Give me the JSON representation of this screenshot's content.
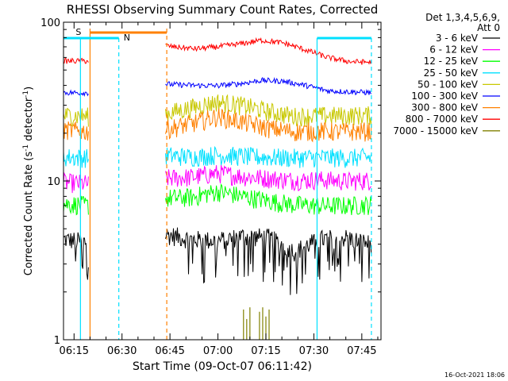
{
  "chart_data": {
    "type": "line",
    "title": "RHESSI Observing Summary Count Rates, Corrected",
    "xlabel": "Start Time (09-Oct-07 06:11:42)",
    "ylabel_main": "Corrected Count Rate (s",
    "ylabel_sup1": "-1",
    "ylabel_mid": " detector",
    "ylabel_sup2": "-1",
    "ylabel_end": ")",
    "y_scale": "log",
    "ylim": [
      1,
      100
    ],
    "xlim": [
      "06:11:42",
      "07:51:00"
    ],
    "x_ticks": [
      "06:15",
      "06:30",
      "06:45",
      "07:00",
      "07:15",
      "07:30",
      "07:45"
    ],
    "y_ticks": [
      "1",
      "10",
      "100"
    ],
    "legend_header": [
      "Det 1,3,4,5,6,9,",
      "Att 0"
    ],
    "legend_position": "top-right",
    "timestamp": "16-Oct-2021 18:06",
    "annotations": [
      {
        "label": "S",
        "color": "#ff8000"
      },
      {
        "label": "N",
        "color": "#00e0ff"
      }
    ],
    "data_gaps": [
      [
        "06:20",
        "06:43"
      ]
    ],
    "series": [
      {
        "name": "3 - 6 keV",
        "color": "#000000",
        "style": "noisy",
        "flicker": true,
        "base": [
          [
            0,
            4.3
          ],
          [
            1,
            4.1
          ],
          [
            2,
            4.7
          ],
          [
            3,
            4.5
          ],
          [
            4,
            4.6
          ],
          [
            5,
            4.3
          ],
          [
            6,
            4.2
          ],
          [
            7,
            4.5
          ],
          [
            8,
            4.4
          ],
          [
            9,
            3.6
          ],
          [
            10,
            4.3
          ],
          [
            11,
            4.4
          ],
          [
            12,
            4.0
          ]
        ]
      },
      {
        "name": "6 - 12 keV",
        "color": "#ff00ff",
        "style": "noisy",
        "base": [
          [
            0,
            9.8
          ],
          [
            1,
            9.6
          ],
          [
            2,
            10.3
          ],
          [
            3,
            10.1
          ],
          [
            4,
            10.4
          ],
          [
            5,
            10.6
          ],
          [
            6,
            11.2
          ],
          [
            7,
            10.7
          ],
          [
            8,
            10.4
          ],
          [
            9,
            10.1
          ],
          [
            10,
            10.2
          ],
          [
            11,
            10.0
          ],
          [
            12,
            10.1
          ]
        ]
      },
      {
        "name": "12 - 25 keV",
        "color": "#00ff00",
        "style": "noisy",
        "base": [
          [
            0,
            7.2
          ],
          [
            1,
            7.0
          ],
          [
            2,
            7.6
          ],
          [
            3,
            7.4
          ],
          [
            4,
            7.8
          ],
          [
            5,
            7.9
          ],
          [
            6,
            8.6
          ],
          [
            7,
            8.0
          ],
          [
            8,
            7.5
          ],
          [
            9,
            7.1
          ],
          [
            10,
            7.0
          ],
          [
            11,
            7.0
          ],
          [
            12,
            7.1
          ]
        ]
      },
      {
        "name": "25 - 50 keV",
        "color": "#00e0ff",
        "style": "noisy",
        "base": [
          [
            0,
            14.2
          ],
          [
            1,
            14.0
          ],
          [
            2,
            14.4
          ],
          [
            3,
            14.1
          ],
          [
            4,
            14.5
          ],
          [
            5,
            14.2
          ],
          [
            6,
            14.6
          ],
          [
            7,
            14.3
          ],
          [
            8,
            14.1
          ],
          [
            9,
            14.0
          ],
          [
            10,
            14.1
          ],
          [
            11,
            14.0
          ],
          [
            12,
            14.1
          ]
        ]
      },
      {
        "name": "50 - 100 keV",
        "color": "#c8c800",
        "style": "noisy",
        "base": [
          [
            0,
            26.0
          ],
          [
            1,
            25.5
          ],
          [
            2,
            26.8
          ],
          [
            3,
            26.0
          ],
          [
            4,
            26.5
          ],
          [
            5,
            29.0
          ],
          [
            6,
            31.5
          ],
          [
            7,
            29.8
          ],
          [
            8,
            27.4
          ],
          [
            9,
            25.6
          ],
          [
            10,
            25.8
          ],
          [
            11,
            25.9
          ],
          [
            12,
            26.0
          ]
        ]
      },
      {
        "name": "100 - 300 keV",
        "color": "#0000ff",
        "style": "smooth",
        "base": [
          [
            0,
            36.0
          ],
          [
            1,
            37.0
          ],
          [
            2,
            46.0
          ],
          [
            3,
            43.5
          ],
          [
            4,
            41.5
          ],
          [
            5,
            40.5
          ],
          [
            6,
            40.0
          ],
          [
            7,
            39.8
          ],
          [
            8,
            41.0
          ],
          [
            9,
            43.0
          ],
          [
            10,
            42.5
          ],
          [
            11,
            40.0
          ],
          [
            12,
            37.0
          ],
          [
            13,
            36.5
          ],
          [
            14,
            36.0
          ]
        ]
      },
      {
        "name": "300 - 800 keV",
        "color": "#ff8000",
        "style": "noisy",
        "base": [
          [
            0,
            21.0
          ],
          [
            1,
            20.5
          ],
          [
            2,
            22.0
          ],
          [
            3,
            20.8
          ],
          [
            4,
            21.2
          ],
          [
            5,
            23.0
          ],
          [
            6,
            25.5
          ],
          [
            7,
            23.5
          ],
          [
            8,
            21.5
          ],
          [
            9,
            20.5
          ],
          [
            10,
            20.6
          ],
          [
            11,
            20.5
          ],
          [
            12,
            20.6
          ]
        ]
      },
      {
        "name": "800 - 7000 keV",
        "color": "#ff0000",
        "style": "smooth",
        "base": [
          [
            0,
            57.0
          ],
          [
            1,
            59.0
          ],
          [
            2,
            86.0
          ],
          [
            3,
            78.0
          ],
          [
            4,
            73.0
          ],
          [
            5,
            70.0
          ],
          [
            6,
            68.0
          ],
          [
            7,
            70.0
          ],
          [
            8,
            73.0
          ],
          [
            9,
            77.0
          ],
          [
            10,
            74.0
          ],
          [
            11,
            67.0
          ],
          [
            12,
            60.0
          ],
          [
            13,
            56.5
          ],
          [
            14,
            56.0
          ]
        ]
      },
      {
        "name": "7000 - 15000 keV",
        "color": "#808000",
        "style": "bursts",
        "base": [
          [
            0,
            1.0
          ]
        ]
      }
    ]
  }
}
